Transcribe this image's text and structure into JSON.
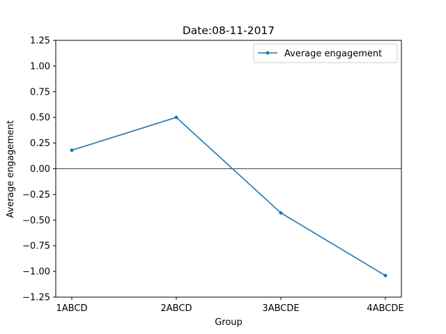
{
  "chart_data": {
    "type": "line",
    "title": "Date:08-11-2017",
    "xlabel": "Group",
    "ylabel": "Average engagement",
    "categories": [
      "1ABCD",
      "2ABCD",
      "3ABCDE",
      "4ABCDE"
    ],
    "series": [
      {
        "name": "Average engagement",
        "values": [
          0.18,
          0.5,
          -0.43,
          -1.04
        ],
        "color": "#1f77b4"
      }
    ],
    "ylim": [
      -1.25,
      1.25
    ],
    "yticks": [
      -1.25,
      -1.0,
      -0.75,
      -0.5,
      -0.25,
      0.0,
      0.25,
      0.5,
      0.75,
      1.0,
      1.25
    ],
    "ytick_labels": [
      "−1.25",
      "−1.00",
      "−0.75",
      "−0.50",
      "−0.25",
      "0.00",
      "0.25",
      "0.50",
      "0.75",
      "1.00",
      "1.25"
    ],
    "zero_line": true,
    "grid": false,
    "legend_position": "top-right"
  }
}
